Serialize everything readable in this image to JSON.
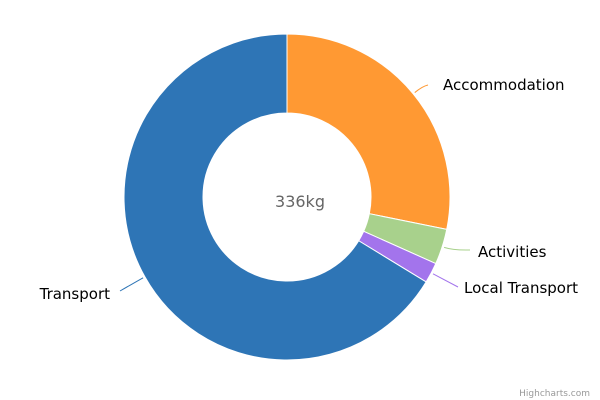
{
  "chart_data": {
    "type": "pie",
    "variant": "donut",
    "center_label": "336kg",
    "categories": [
      "Accommodation",
      "Activities",
      "Local Transport",
      "Transport"
    ],
    "values": [
      94.7,
      11.8,
      6.8,
      222.7
    ],
    "colors": [
      "#ff9933",
      "#a8d18c",
      "#a374ec",
      "#2e75b6"
    ],
    "total": 336,
    "unit": "kg",
    "start_angle_deg": 0,
    "credits": "Highcharts.com"
  }
}
